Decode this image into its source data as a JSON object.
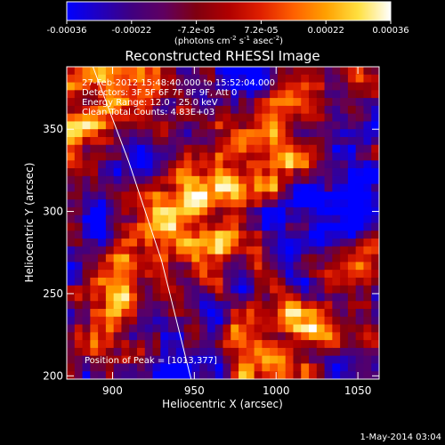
{
  "colorbar": {
    "tick_labels": [
      "-0.00036",
      "-0.00022",
      "-7.2e-05",
      "7.2e-05",
      "0.00022",
      "0.00036"
    ],
    "range": [
      -0.00036,
      0.00036
    ],
    "unit_base": "(photons cm",
    "unit_exp1": "-2",
    "unit_mid": " s",
    "unit_exp2": "-1",
    "unit_tail": " asec",
    "unit_exp3": "-2",
    "unit_close": ")",
    "colormap": [
      "#0000ff",
      "#2000c0",
      "#400080",
      "#600060",
      "#800010",
      "#b00000",
      "#e02000",
      "#ff6000",
      "#ffa000",
      "#ffe040",
      "#ffffff"
    ]
  },
  "chart_data": {
    "type": "heatmap",
    "title": "Reconstructed RHESSI Image",
    "xlabel": "Heliocentric X (arcsec)",
    "ylabel": "Heliocentric Y (arcsec)",
    "xlim": [
      872,
      1063
    ],
    "ylim": [
      198,
      388
    ],
    "xticks": [
      900,
      950,
      1000,
      1050
    ],
    "yticks": [
      200,
      250,
      300,
      350
    ],
    "annotations": [
      "27-Feb-2012 15:48:40.000 to 15:52:04.000",
      "Detectors: 3F 5F 6F 7F 8F 9F, Att 0",
      "Energy Range: 12.0 - 25.0 keV",
      "Clean    Total Counts: 4.83E+03"
    ],
    "peak_label": "Position of Peak = [1013,377]",
    "limb_curve": [
      [
        888,
        388
      ],
      [
        910,
        330
      ],
      [
        930,
        270
      ],
      [
        948,
        198
      ]
    ],
    "grid": false
  },
  "footer": {
    "timestamp": "1-May-2014 03:04"
  }
}
